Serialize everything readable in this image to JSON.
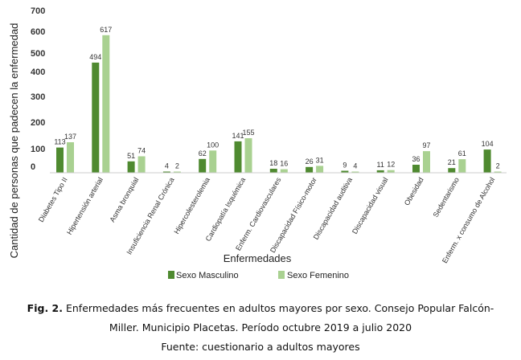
{
  "chart_data": {
    "type": "bar",
    "title": "",
    "xlabel": "Enfermedades",
    "ylabel": "Cantidad de personas que padecen la enfermedad",
    "ylim": [
      0,
      700
    ],
    "yticks": [
      0,
      100,
      200,
      300,
      400,
      500,
      600,
      700
    ],
    "categories": [
      "Diabetes Tipo II",
      "Hipertensión arterial",
      "Asma bronquial",
      "Insuficiencia Renal Crónica",
      "Hipercolesterolemia",
      "Cardiopatía Isquémica",
      "Enferm. Cardiovasculares",
      "Discapacidad Físico-motor",
      "Discapacidad auditiva",
      "Discapacidad visual",
      "Obesidad",
      "Sedentarismo",
      "Enferm. x consumo de Alcohol"
    ],
    "series": [
      {
        "name": "Sexo Masculino",
        "color": "#4f8a30",
        "values": [
          113,
          494,
          51,
          4,
          62,
          141,
          18,
          26,
          9,
          11,
          36,
          21,
          104
        ]
      },
      {
        "name": "Sexo Femenino",
        "color": "#a9d191",
        "values": [
          137,
          617,
          74,
          2,
          100,
          155,
          16,
          31,
          4,
          12,
          97,
          61,
          2
        ]
      }
    ],
    "legend": "bottom",
    "grid": false
  },
  "caption": {
    "label": "Fig. 2.",
    "line1": "Enfermedades más frecuentes en adultos mayores por sexo. Consejo Popular Falcón-",
    "line2": "Miller. Municipio  Placetas. Período octubre 2019 a julio 2020",
    "line3": "Fuente: cuestionario  a adultos mayores"
  }
}
